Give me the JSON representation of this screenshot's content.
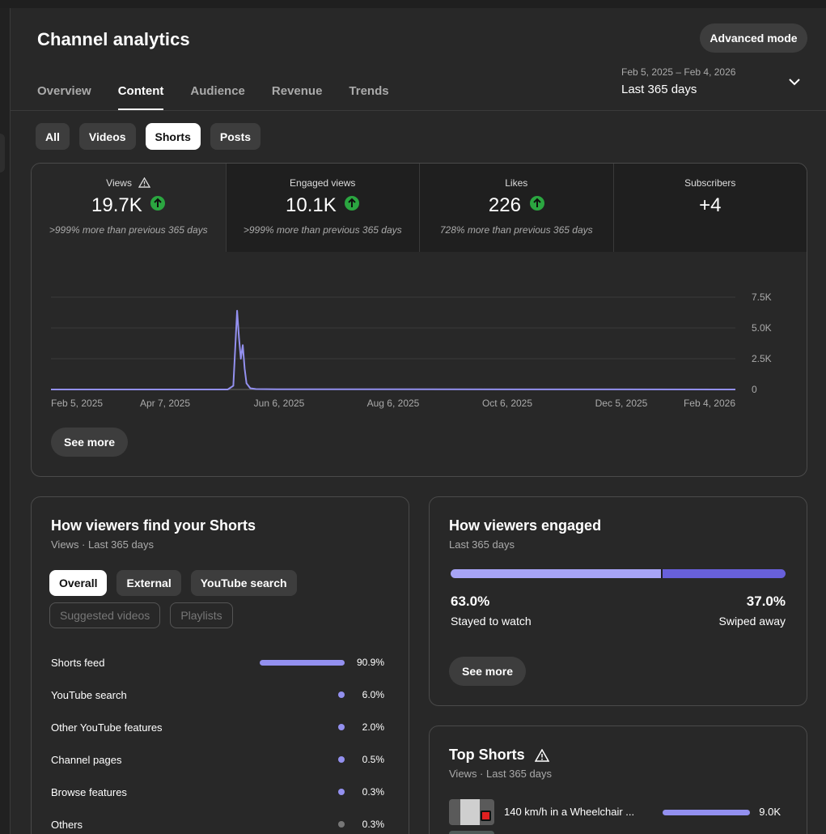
{
  "header": {
    "title": "Channel analytics",
    "advanced_mode": "Advanced mode",
    "tabs": [
      "Overview",
      "Content",
      "Audience",
      "Revenue",
      "Trends"
    ],
    "active_tab": "Content",
    "date_range": "Feb 5, 2025 – Feb 4, 2026",
    "period": "Last 365 days"
  },
  "content_filters": [
    "All",
    "Videos",
    "Shorts",
    "Posts"
  ],
  "active_filter": "Shorts",
  "metrics": [
    {
      "label": "Views",
      "value": "19.7K",
      "note": ">999% more than previous 365 days",
      "warning": true,
      "trend": "up"
    },
    {
      "label": "Engaged views",
      "value": "10.1K",
      "note": ">999% more than previous 365 days",
      "trend": "up"
    },
    {
      "label": "Likes",
      "value": "226",
      "note": "728% more than previous 365 days",
      "trend": "up"
    },
    {
      "label": "Subscribers",
      "value": "+4",
      "note": ""
    }
  ],
  "chart_data": {
    "type": "line",
    "x_tick_labels": [
      "Feb 5, 2025",
      "Apr 7, 2025",
      "Jun 6, 2025",
      "Aug 6, 2025",
      "Oct 6, 2025",
      "Dec 5, 2025",
      "Feb 4, 2026"
    ],
    "y_tick_labels": [
      "7.5K",
      "5.0K",
      "2.5K",
      "0"
    ],
    "ylim": [
      0,
      7500
    ],
    "grid": true,
    "color": "#9390ef",
    "series": [
      {
        "x": [
          "2025-02-05",
          "2025-05-10",
          "2025-05-13",
          "2025-05-15",
          "2025-05-16",
          "2025-05-17",
          "2025-05-18",
          "2025-05-19",
          "2025-05-20",
          "2025-05-22",
          "2025-05-25",
          "2025-06-05",
          "2026-02-04"
        ],
        "y": [
          0,
          0,
          300,
          6400,
          4200,
          2500,
          3600,
          1700,
          500,
          100,
          30,
          20,
          0
        ]
      }
    ]
  },
  "see_more": "See more",
  "find": {
    "title": "How viewers find your Shorts",
    "subtitle": "Views · Last 365 days",
    "filters_row1": [
      "Overall",
      "External",
      "YouTube search"
    ],
    "filters_row2": [
      "Suggested videos",
      "Playlists"
    ],
    "active_filter": "Overall",
    "sources": [
      {
        "label": "Shorts feed",
        "pct": "90.9%",
        "value": 90.9
      },
      {
        "label": "YouTube search",
        "pct": "6.0%",
        "value": 6.0
      },
      {
        "label": "Other YouTube features",
        "pct": "2.0%",
        "value": 2.0
      },
      {
        "label": "Channel pages",
        "pct": "0.5%",
        "value": 0.5
      },
      {
        "label": "Browse features",
        "pct": "0.3%",
        "value": 0.3
      },
      {
        "label": "Others",
        "pct": "0.3%",
        "value": 0.3
      }
    ]
  },
  "engaged": {
    "title": "How viewers engaged",
    "subtitle": "Last 365 days",
    "stayed_pct": "63.0%",
    "stayed_label": "Stayed to watch",
    "swiped_pct": "37.0%",
    "swiped_label": "Swiped away",
    "stayed_value": 63.0,
    "see_more": "See more"
  },
  "top_shorts": {
    "title": "Top Shorts",
    "subtitle": "Views · Last 365 days",
    "items": [
      {
        "name": "140 km/h in a Wheelchair ...",
        "value": "9.0K"
      }
    ]
  }
}
